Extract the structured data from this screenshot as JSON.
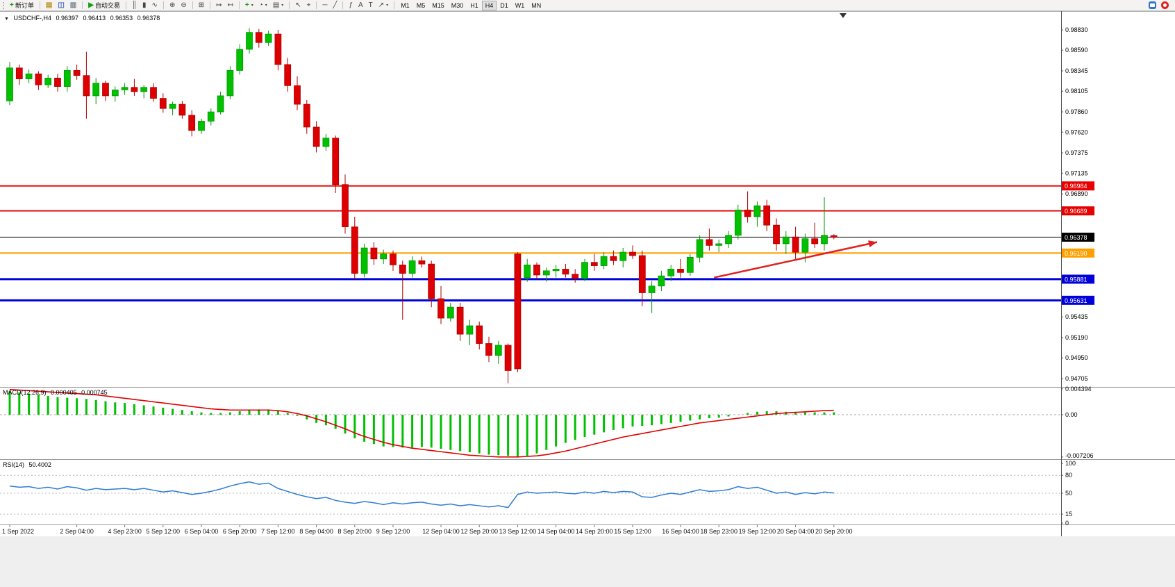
{
  "toolbar": {
    "active_timeframe": "H4",
    "groups": [
      {
        "items": [
          {
            "name": "new-order-button",
            "glyph": "+",
            "glyph_color": "#12a012",
            "label": "新订单"
          }
        ]
      },
      {
        "items": [
          {
            "name": "new-chart-button",
            "glyph": "▤",
            "glyph_color": "#c09020"
          },
          {
            "name": "profiles-button",
            "glyph": "◫",
            "glyph_color": "#4868c8"
          },
          {
            "name": "data-window-button",
            "glyph": "▥",
            "glyph_color": "#708090"
          }
        ]
      },
      {
        "items": [
          {
            "name": "autotrading-button",
            "glyph": "▶",
            "glyph_color": "#12a012",
            "label": "自动交易"
          }
        ]
      },
      {
        "items": [
          {
            "name": "bars-chart-button",
            "glyph": "║"
          },
          {
            "name": "candles-chart-button",
            "glyph": "▮"
          },
          {
            "name": "line-chart-button",
            "glyph": "∿"
          }
        ]
      },
      {
        "items": [
          {
            "name": "zoom-in-button",
            "glyph": "⊕"
          },
          {
            "name": "zoom-out-button",
            "glyph": "⊖"
          }
        ]
      },
      {
        "items": [
          {
            "name": "tile-windows-button",
            "glyph": "⊞"
          }
        ]
      },
      {
        "items": [
          {
            "name": "auto-scroll-button",
            "glyph": "↦"
          },
          {
            "name": "chart-shift-button",
            "glyph": "↤"
          }
        ]
      },
      {
        "items": [
          {
            "name": "indicators-button",
            "glyph": "+",
            "glyph_color": "#12a012",
            "dropdown": true
          },
          {
            "name": "periods-button",
            "glyph": "◔",
            "dropdown": true
          },
          {
            "name": "templates-button",
            "glyph": "▤",
            "dropdown": true
          }
        ]
      },
      {
        "items": [
          {
            "name": "cursor-button",
            "glyph": "↖"
          },
          {
            "name": "crosshair-button",
            "glyph": "⌖"
          }
        ]
      },
      {
        "items": [
          {
            "name": "horizontal-line-button",
            "glyph": "─"
          },
          {
            "name": "trendline-button",
            "glyph": "╱"
          }
        ]
      },
      {
        "items": [
          {
            "name": "fibonacci-button",
            "glyph": "ƒ"
          },
          {
            "name": "text-button",
            "glyph": "A"
          },
          {
            "name": "label-button",
            "glyph": "T"
          },
          {
            "name": "arrows-button",
            "glyph": "↗",
            "dropdown": true
          }
        ]
      },
      {
        "items": [
          {
            "name": "timeframe-m1-button",
            "label": "M1",
            "tf": true
          },
          {
            "name": "timeframe-m5-button",
            "label": "M5",
            "tf": true
          },
          {
            "name": "timeframe-m15-button",
            "label": "M15",
            "tf": true
          },
          {
            "name": "timeframe-m30-button",
            "label": "M30",
            "tf": true
          },
          {
            "name": "timeframe-h1-button",
            "label": "H1",
            "tf": true
          },
          {
            "name": "timeframe-h4-button",
            "label": "H4",
            "tf": true
          },
          {
            "name": "timeframe-d1-button",
            "label": "D1",
            "tf": true
          },
          {
            "name": "timeframe-w1-button",
            "label": "W1",
            "tf": true
          },
          {
            "name": "timeframe-mn-button",
            "label": "MN",
            "tf": true
          }
        ]
      }
    ]
  },
  "chart_data": {
    "type": "candlestick",
    "title": {
      "symbol": "USDCHF-,H4",
      "open": "0.96397",
      "high": "0.96413",
      "low": "0.96353",
      "close": "0.96378"
    },
    "colors": {
      "up": "#00C000",
      "up_stroke": "#009600",
      "down": "#DE0000",
      "down_stroke": "#A80000",
      "macd_hist": "#00C000",
      "macd_signal": "#E00000",
      "rsi_line": "#2D7BD4",
      "arrow": "#E02020"
    },
    "candles": [
      [
        0.9799,
        0.9845,
        0.9794,
        0.9838
      ],
      [
        0.9838,
        0.9842,
        0.9818,
        0.9825
      ],
      [
        0.9825,
        0.9836,
        0.982,
        0.9831
      ],
      [
        0.9831,
        0.9834,
        0.9812,
        0.9818
      ],
      [
        0.9818,
        0.983,
        0.9814,
        0.9826
      ],
      [
        0.9826,
        0.9831,
        0.981,
        0.9816
      ],
      [
        0.9816,
        0.984,
        0.981,
        0.9835
      ],
      [
        0.9835,
        0.9842,
        0.9824,
        0.9829
      ],
      [
        0.9829,
        0.9857,
        0.9778,
        0.9805
      ],
      [
        0.9805,
        0.9826,
        0.9795,
        0.982
      ],
      [
        0.982,
        0.9823,
        0.9799,
        0.9805
      ],
      [
        0.9805,
        0.9816,
        0.9798,
        0.9812
      ],
      [
        0.9812,
        0.982,
        0.9806,
        0.9815
      ],
      [
        0.9815,
        0.9825,
        0.9805,
        0.981
      ],
      [
        0.981,
        0.9818,
        0.9802,
        0.9815
      ],
      [
        0.9815,
        0.982,
        0.9798,
        0.9802
      ],
      [
        0.9802,
        0.9808,
        0.9785,
        0.979
      ],
      [
        0.979,
        0.9798,
        0.9782,
        0.9795
      ],
      [
        0.9795,
        0.9799,
        0.9778,
        0.9782
      ],
      [
        0.9782,
        0.9788,
        0.9757,
        0.9764
      ],
      [
        0.9764,
        0.9778,
        0.976,
        0.9775
      ],
      [
        0.9775,
        0.979,
        0.977,
        0.9786
      ],
      [
        0.9786,
        0.981,
        0.9783,
        0.9805
      ],
      [
        0.9805,
        0.984,
        0.9801,
        0.9835
      ],
      [
        0.9835,
        0.9866,
        0.983,
        0.986
      ],
      [
        0.986,
        0.9885,
        0.9855,
        0.988
      ],
      [
        0.988,
        0.9884,
        0.9862,
        0.9868
      ],
      [
        0.9868,
        0.9882,
        0.9864,
        0.9878
      ],
      [
        0.9878,
        0.9883,
        0.9835,
        0.9842
      ],
      [
        0.9842,
        0.985,
        0.981,
        0.9817
      ],
      [
        0.9817,
        0.9828,
        0.9788,
        0.9795
      ],
      [
        0.9795,
        0.98,
        0.976,
        0.9768
      ],
      [
        0.9768,
        0.9775,
        0.9738,
        0.9745
      ],
      [
        0.9745,
        0.976,
        0.974,
        0.9755
      ],
      [
        0.9755,
        0.9758,
        0.969,
        0.97
      ],
      [
        0.97,
        0.9712,
        0.9642,
        0.965
      ],
      [
        0.965,
        0.9662,
        0.9588,
        0.9595
      ],
      [
        0.9595,
        0.963,
        0.959,
        0.9625
      ],
      [
        0.9625,
        0.9632,
        0.9605,
        0.9612
      ],
      [
        0.9612,
        0.9623,
        0.9606,
        0.9618
      ],
      [
        0.9618,
        0.9622,
        0.9598,
        0.9605
      ],
      [
        0.9605,
        0.961,
        0.954,
        0.9595
      ],
      [
        0.9595,
        0.9615,
        0.959,
        0.961
      ],
      [
        0.961,
        0.9615,
        0.9602,
        0.9606
      ],
      [
        0.9606,
        0.961,
        0.9555,
        0.9565
      ],
      [
        0.9565,
        0.958,
        0.9535,
        0.9542
      ],
      [
        0.9542,
        0.956,
        0.9538,
        0.9555
      ],
      [
        0.9555,
        0.956,
        0.9515,
        0.9523
      ],
      [
        0.9523,
        0.954,
        0.951,
        0.9533
      ],
      [
        0.9533,
        0.9538,
        0.9505,
        0.9512
      ],
      [
        0.9512,
        0.952,
        0.949,
        0.9498
      ],
      [
        0.9498,
        0.9515,
        0.9488,
        0.951
      ],
      [
        0.951,
        0.9512,
        0.9465,
        0.948
      ],
      [
        0.9618,
        0.962,
        0.9478,
        0.9482
      ],
      [
        0.959,
        0.9612,
        0.9585,
        0.9605
      ],
      [
        0.9605,
        0.9608,
        0.9588,
        0.9593
      ],
      [
        0.9593,
        0.9602,
        0.9585,
        0.9598
      ],
      [
        0.9598,
        0.9605,
        0.959,
        0.96
      ],
      [
        0.96,
        0.9606,
        0.959,
        0.9594
      ],
      [
        0.9594,
        0.96,
        0.9584,
        0.9589
      ],
      [
        0.9589,
        0.9612,
        0.9586,
        0.9608
      ],
      [
        0.9608,
        0.9618,
        0.9598,
        0.9604
      ],
      [
        0.9604,
        0.962,
        0.96,
        0.9615
      ],
      [
        0.9615,
        0.9622,
        0.9605,
        0.961
      ],
      [
        0.961,
        0.9625,
        0.9602,
        0.962
      ],
      [
        0.962,
        0.9628,
        0.9612,
        0.9616
      ],
      [
        0.9616,
        0.9622,
        0.9556,
        0.9572
      ],
      [
        0.9572,
        0.9586,
        0.9548,
        0.958
      ],
      [
        0.958,
        0.9598,
        0.9574,
        0.9592
      ],
      [
        0.9592,
        0.9605,
        0.9586,
        0.96
      ],
      [
        0.96,
        0.9612,
        0.959,
        0.9596
      ],
      [
        0.9596,
        0.9618,
        0.9592,
        0.9614
      ],
      [
        0.9614,
        0.964,
        0.9608,
        0.9635
      ],
      [
        0.9635,
        0.9648,
        0.9622,
        0.9628
      ],
      [
        0.9628,
        0.9635,
        0.962,
        0.963
      ],
      [
        0.963,
        0.9645,
        0.9625,
        0.964
      ],
      [
        0.964,
        0.9676,
        0.9635,
        0.967
      ],
      [
        0.967,
        0.9692,
        0.9655,
        0.9662
      ],
      [
        0.9662,
        0.968,
        0.965,
        0.9675
      ],
      [
        0.9675,
        0.9682,
        0.9645,
        0.9652
      ],
      [
        0.9652,
        0.966,
        0.9622,
        0.963
      ],
      [
        0.963,
        0.9645,
        0.9618,
        0.9638
      ],
      [
        0.9638,
        0.965,
        0.9612,
        0.962
      ],
      [
        0.962,
        0.9642,
        0.9608,
        0.9636
      ],
      [
        0.9636,
        0.9655,
        0.9625,
        0.963
      ],
      [
        0.963,
        0.9685,
        0.9622,
        0.964
      ],
      [
        0.96397,
        0.96413,
        0.96353,
        0.96378
      ]
    ],
    "price_axis": {
      "labels": [
        "0.98830",
        "0.98590",
        "0.98345",
        "0.98105",
        "0.97860",
        "0.97620",
        "0.97375",
        "0.97135",
        "0.96890",
        "0.95435",
        "0.95190",
        "0.94950",
        "0.94705"
      ]
    },
    "hlines": [
      {
        "price": 0.96984,
        "color": "#E80000",
        "width": 2,
        "badge": "0.96984"
      },
      {
        "price": 0.96689,
        "color": "#E80000",
        "width": 2,
        "badge": "0.96689"
      },
      {
        "price": 0.96378,
        "color": "#141414",
        "width": 1,
        "badge": "0.96378",
        "badge_color": "#000000"
      },
      {
        "price": 0.9619,
        "color": "#FFA000",
        "width": 2,
        "badge": "0.96190"
      },
      {
        "price": 0.95881,
        "color": "#0000D8",
        "width": 3,
        "badge": "0.95881"
      },
      {
        "price": 0.95631,
        "color": "#0000D8",
        "width": 3,
        "badge": "0.95631"
      }
    ],
    "arrow": {
      "from": {
        "bar": 73.5,
        "price": 0.959
      },
      "to": {
        "bar": 90.5,
        "price": 0.9632
      }
    },
    "macd": {
      "label": "MACD(12,26,9)",
      "value_main": "0.000405",
      "value_signal": "0.000745",
      "axis": [
        "0.004394",
        "0.00",
        "-0.007206"
      ],
      "histogram": [
        0.004,
        0.0038,
        0.0036,
        0.0034,
        0.0032,
        0.003,
        0.0029,
        0.0028,
        0.0027,
        0.0025,
        0.0023,
        0.0021,
        0.002,
        0.0018,
        0.0016,
        0.0014,
        0.0012,
        0.001,
        0.0008,
        0.0006,
        0.0004,
        0.0003,
        0.0003,
        0.0004,
        0.0006,
        0.0008,
        0.0009,
        0.0009,
        0.0007,
        0.0003,
        -0.0002,
        -0.0008,
        -0.0014,
        -0.0018,
        -0.0024,
        -0.0032,
        -0.004,
        -0.0046,
        -0.005,
        -0.0054,
        -0.0055,
        -0.0056,
        -0.0056,
        -0.0055,
        -0.0056,
        -0.0058,
        -0.006,
        -0.0062,
        -0.0064,
        -0.0066,
        -0.0068,
        -0.0069,
        -0.007,
        -0.0071,
        -0.007,
        -0.0066,
        -0.006,
        -0.0054,
        -0.0048,
        -0.0043,
        -0.0038,
        -0.0034,
        -0.003,
        -0.0026,
        -0.0023,
        -0.002,
        -0.0019,
        -0.0018,
        -0.0016,
        -0.0014,
        -0.0012,
        -0.001,
        -0.0008,
        -0.0006,
        -0.0005,
        -0.0003,
        0.0,
        0.0003,
        0.0005,
        0.0006,
        0.0006,
        0.0005,
        0.0005,
        0.0004,
        0.0004,
        0.0004,
        0.000405
      ],
      "signal": [
        0.0043,
        0.0042,
        0.0041,
        0.004,
        0.0039,
        0.0038,
        0.0037,
        0.0036,
        0.0035,
        0.0034,
        0.0032,
        0.003,
        0.0028,
        0.0026,
        0.0024,
        0.0022,
        0.002,
        0.0018,
        0.0016,
        0.0014,
        0.0012,
        0.001,
        0.0009,
        0.0008,
        0.0008,
        0.0008,
        0.0008,
        0.0008,
        0.0007,
        0.0005,
        0.0002,
        -0.0002,
        -0.0007,
        -0.0012,
        -0.0018,
        -0.0024,
        -0.0031,
        -0.0037,
        -0.0042,
        -0.0047,
        -0.0051,
        -0.0054,
        -0.0057,
        -0.0059,
        -0.0061,
        -0.0063,
        -0.0065,
        -0.0067,
        -0.0069,
        -0.007,
        -0.0071,
        -0.0072,
        -0.0072,
        -0.0072,
        -0.0071,
        -0.007,
        -0.0068,
        -0.0065,
        -0.0062,
        -0.0058,
        -0.0054,
        -0.005,
        -0.0046,
        -0.0042,
        -0.0038,
        -0.0035,
        -0.0032,
        -0.0029,
        -0.0026,
        -0.0023,
        -0.002,
        -0.0017,
        -0.0014,
        -0.0012,
        -0.001,
        -0.0008,
        -0.0006,
        -0.0004,
        -0.0002,
        0.0,
        0.0002,
        0.0003,
        0.0004,
        0.0005,
        0.0006,
        0.0007,
        0.000745
      ]
    },
    "rsi": {
      "label": "RSI(14)",
      "value": "50.4002",
      "axis": [
        "100",
        "80",
        "50",
        "15",
        "0"
      ],
      "levels": [
        80,
        50,
        15
      ],
      "values": [
        62,
        60,
        61,
        58,
        60,
        57,
        61,
        59,
        55,
        58,
        56,
        57,
        58,
        56,
        58,
        55,
        52,
        54,
        51,
        48,
        50,
        53,
        57,
        62,
        66,
        69,
        65,
        67,
        58,
        53,
        48,
        44,
        41,
        43,
        38,
        35,
        33,
        36,
        34,
        31,
        34,
        32,
        34,
        35,
        32,
        30,
        32,
        29,
        31,
        29,
        27,
        29,
        26,
        48,
        52,
        50,
        51,
        52,
        50,
        49,
        52,
        50,
        53,
        51,
        53,
        52,
        44,
        43,
        47,
        50,
        48,
        52,
        56,
        53,
        54,
        56,
        61,
        58,
        60,
        55,
        50,
        52,
        48,
        51,
        49,
        52,
        50.4
      ]
    },
    "date_labels": [
      {
        "text": "1 Sep 2022",
        "bar": 0
      },
      {
        "text": "2 Sep 04:00",
        "bar": 7
      },
      {
        "text": "4 Sep 23:00",
        "bar": 12
      },
      {
        "text": "5 Sep 12:00",
        "bar": 16
      },
      {
        "text": "6 Sep 04:00",
        "bar": 20
      },
      {
        "text": "6 Sep 20:00",
        "bar": 24
      },
      {
        "text": "7 Sep 12:00",
        "bar": 28
      },
      {
        "text": "8 Sep 04:00",
        "bar": 32
      },
      {
        "text": "8 Sep 20:00",
        "bar": 36
      },
      {
        "text": "9 Sep 12:00",
        "bar": 40
      },
      {
        "text": "12 Sep 04:00",
        "bar": 45
      },
      {
        "text": "12 Sep 20:00",
        "bar": 49
      },
      {
        "text": "13 Sep 12:00",
        "bar": 53
      },
      {
        "text": "14 Sep 04:00",
        "bar": 57
      },
      {
        "text": "14 Sep 20:00",
        "bar": 61
      },
      {
        "text": "15 Sep 12:00",
        "bar": 65
      },
      {
        "text": "16 Sep 04:00",
        "bar": 70
      },
      {
        "text": "18 Sep 23:00",
        "bar": 74
      },
      {
        "text": "19 Sep 12:00",
        "bar": 78
      },
      {
        "text": "20 Sep 04:00",
        "bar": 82
      },
      {
        "text": "20 Sep 20:00",
        "bar": 86
      }
    ]
  }
}
